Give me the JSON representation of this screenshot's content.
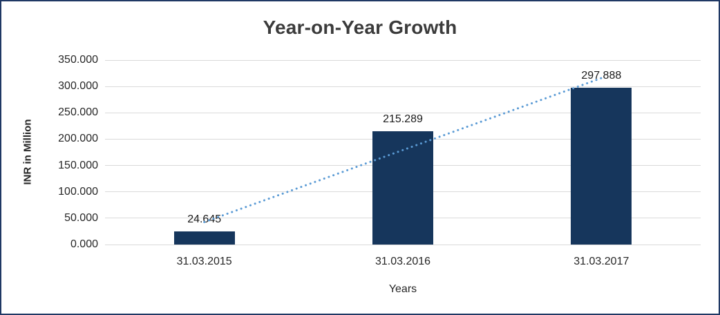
{
  "chart_data": {
    "type": "bar",
    "title": "Year-on-Year Growth",
    "xlabel": "Years",
    "ylabel": "INR in Million",
    "categories": [
      "31.03.2015",
      "31.03.2016",
      "31.03.2017"
    ],
    "values": [
      24.645,
      215.289,
      297.888
    ],
    "data_labels": [
      "24.645",
      "215.289",
      "297.888"
    ],
    "ylim": [
      0,
      350
    ],
    "y_tick_step": 50,
    "y_tick_labels": [
      "0.000",
      "50.000",
      "100.000",
      "150.000",
      "200.000",
      "250.000",
      "300.000",
      "350.000"
    ],
    "grid": "horizontal",
    "legend": "none",
    "trendline": {
      "type": "linear",
      "style": "dotted",
      "color": "#5b9bd5"
    },
    "colors": {
      "bar": "#16365c",
      "grid": "#d9d9d9",
      "text": "#262626",
      "title_text": "#3b3b3b",
      "border": "#1f3864",
      "background": "#ffffff"
    }
  }
}
